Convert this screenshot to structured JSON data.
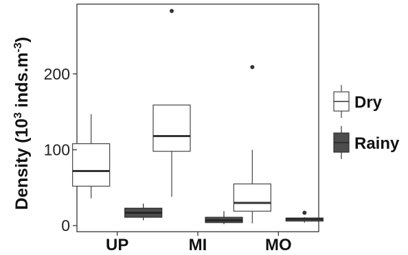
{
  "chart_data": {
    "type": "boxplot",
    "ylabel": "Density (10",
    "ylabel_sup1": "3",
    "ylabel_mid": " inds.m",
    "ylabel_sup2": "-3",
    "ylabel_end": ")",
    "ylim": [
      -8,
      292
    ],
    "yticks": [
      0,
      100,
      200
    ],
    "categories": [
      "UP",
      "MI",
      "MO"
    ],
    "legend_position": "right",
    "series": [
      {
        "name": "Dry",
        "fill": "#ffffff",
        "stroke": "#444444",
        "median_color": "#333333",
        "boxes": [
          {
            "category": "UP",
            "lower": 36,
            "q1": 52,
            "median": 72,
            "q3": 108,
            "upper": 147,
            "outliers": []
          },
          {
            "category": "MI",
            "lower": 38,
            "q1": 98,
            "median": 118,
            "q3": 159,
            "upper": 159,
            "outliers": [
              283
            ]
          },
          {
            "category": "MO",
            "lower": 3,
            "q1": 19,
            "median": 30,
            "q3": 55,
            "upper": 100,
            "outliers": [
              209
            ]
          }
        ]
      },
      {
        "name": "Rainy",
        "fill": "#4d4d4d",
        "stroke": "#2e2e2e",
        "median_color": "#262626",
        "boxes": [
          {
            "category": "UP",
            "lower": 7,
            "q1": 11,
            "median": 17,
            "q3": 23,
            "upper": 29,
            "outliers": []
          },
          {
            "category": "MI",
            "lower": 2,
            "q1": 4,
            "median": 7,
            "q3": 11,
            "upper": 19,
            "outliers": []
          },
          {
            "category": "MO",
            "lower": 4,
            "q1": 6,
            "median": 9,
            "q3": 10,
            "upper": 11,
            "outliers": [
              17
            ]
          }
        ]
      }
    ]
  }
}
